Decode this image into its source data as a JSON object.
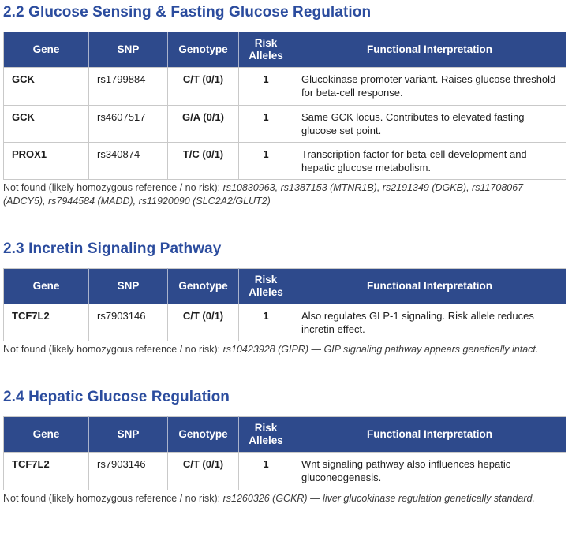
{
  "colors": {
    "heading_blue": "#2b4c9e",
    "table_header_bg": "#2e4a8c",
    "table_header_text": "#ffffff",
    "highlight_cell_bg": "#faf2d8",
    "border": "#c9c9c9"
  },
  "table": {
    "headers": [
      "Gene",
      "SNP",
      "Genotype",
      "Risk Alleles",
      "Functional Interpretation"
    ]
  },
  "sections": [
    {
      "title": "2.2 Glucose Sensing & Fasting Glucose Regulation",
      "rows": [
        {
          "gene": "GCK",
          "snp": "rs1799884",
          "genotype": "C/T (0/1)",
          "risk_alleles": "1",
          "interpretation": "Glucokinase promoter variant. Raises glucose threshold for beta-cell response."
        },
        {
          "gene": "GCK",
          "snp": "rs4607517",
          "genotype": "G/A (0/1)",
          "risk_alleles": "1",
          "interpretation": "Same GCK locus. Contributes to elevated fasting glucose set point."
        },
        {
          "gene": "PROX1",
          "snp": "rs340874",
          "genotype": "T/C (0/1)",
          "risk_alleles": "1",
          "interpretation": "Transcription factor for beta-cell development and hepatic glucose metabolism."
        }
      ],
      "not_found": {
        "label": "Not found (likely homozygous reference / no risk): ",
        "detail": "rs10830963, rs1387153 (MTNR1B), rs2191349 (DGKB), rs11708067 (ADCY5), rs7944584 (MADD), rs11920090 (SLC2A2/GLUT2)"
      }
    },
    {
      "title": "2.3 Incretin Signaling Pathway",
      "rows": [
        {
          "gene": "TCF7L2",
          "snp": "rs7903146",
          "genotype": "C/T (0/1)",
          "risk_alleles": "1",
          "interpretation": "Also regulates GLP-1 signaling. Risk allele reduces incretin effect."
        }
      ],
      "not_found": {
        "label": "Not found (likely homozygous reference / no risk): ",
        "detail": "rs10423928 (GIPR) — GIP signaling pathway appears genetically intact."
      }
    },
    {
      "title": "2.4 Hepatic Glucose Regulation",
      "rows": [
        {
          "gene": "TCF7L2",
          "snp": "rs7903146",
          "genotype": "C/T (0/1)",
          "risk_alleles": "1",
          "interpretation": "Wnt signaling pathway also influences hepatic gluconeogenesis."
        }
      ],
      "not_found": {
        "label": "Not found (likely homozygous reference / no risk): ",
        "detail": "rs1260326 (GCKR) — liver glucokinase regulation genetically standard."
      }
    }
  ]
}
